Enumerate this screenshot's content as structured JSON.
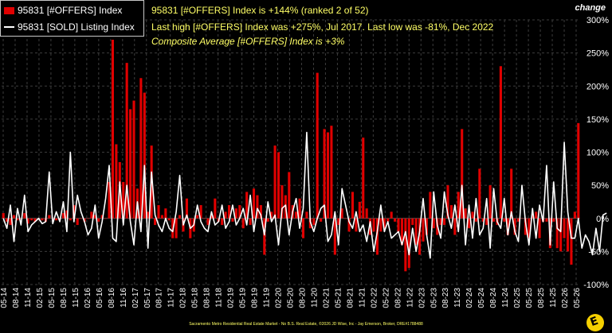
{
  "legend": {
    "bar_label": "95831 [#OFFERS] Index",
    "line_label": "95831 [SOLD] Listing Index"
  },
  "info": {
    "line1": "95831 [#OFFERS] Index is +144% (ranked 2 of 52)",
    "line2": "Last high [#OFFERS] Index was +275%, Jul 2017. Last low was -81%, Dec 2022",
    "line3": "Composite Average [#OFFERS] Index is +3%"
  },
  "footer": "Sacramento Metro Residential Real Estate Market - No B.S. Real Estate, ©2026 JD Wise, Inc - Jay Emerson, Broker, DRE#1788488",
  "colors": {
    "bars": "#e00000",
    "line": "#ffffff",
    "grid": "#3c3c3c",
    "zero_line": "#5a5a5a",
    "info_text": "#ffff66"
  },
  "chart_data": {
    "type": "bar",
    "ylabel": "change",
    "ylim": [
      -100,
      300
    ],
    "yticks": [
      -100,
      -50,
      0,
      50,
      100,
      150,
      200,
      250,
      300
    ],
    "ytick_labels": [
      "-100%",
      "-50%",
      "0%",
      "50%",
      "100%",
      "150%",
      "200%",
      "250%",
      "300%"
    ],
    "x_tick_labels": [
      "05-14",
      "08-14",
      "11-14",
      "02-15",
      "05-15",
      "08-15",
      "11-15",
      "02-16",
      "05-16",
      "08-16",
      "11-16",
      "02-17",
      "05-17",
      "08-17",
      "11-17",
      "02-18",
      "05-18",
      "08-18",
      "11-18",
      "02-19",
      "05-19",
      "08-19",
      "11-19",
      "02-20",
      "05-20",
      "08-20",
      "11-20",
      "02-21",
      "05-21",
      "08-21",
      "11-21",
      "02-22",
      "05-22",
      "08-22",
      "11-22",
      "02-23",
      "05-23",
      "08-23",
      "11-23",
      "02-24",
      "05-24",
      "08-24",
      "11-24",
      "02-25",
      "05-25",
      "08-25",
      "11-25",
      "02-26",
      "05-26"
    ],
    "series": [
      {
        "name": "95831 [#OFFERS] Index",
        "type": "bar",
        "values": [
          8,
          -5,
          -10,
          5,
          -3,
          0,
          8,
          -8,
          -3,
          -5,
          0,
          -3,
          -5,
          5,
          0,
          -3,
          0,
          8,
          12,
          -3,
          20,
          -10,
          0,
          -5,
          0,
          10,
          5,
          -5,
          5,
          0,
          55,
          270,
          112,
          85,
          55,
          235,
          165,
          178,
          45,
          212,
          190,
          10,
          110,
          -10,
          20,
          5,
          15,
          -3,
          -30,
          -30,
          5,
          -20,
          30,
          -30,
          -20,
          5,
          20,
          0,
          -10,
          5,
          30,
          -5,
          -10,
          10,
          20,
          -5,
          15,
          20,
          -15,
          40,
          -10,
          45,
          35,
          20,
          -55,
          -5,
          10,
          110,
          100,
          50,
          35,
          70,
          20,
          10,
          30,
          -30,
          10,
          -15,
          -10,
          220,
          -5,
          135,
          130,
          140,
          -55,
          -10,
          15,
          0,
          -20,
          40,
          -20,
          25,
          122,
          15,
          -25,
          -20,
          -55,
          -20,
          -15,
          -5,
          10,
          -5,
          -20,
          -40,
          -80,
          -75,
          -10,
          -40,
          -55,
          -35,
          -25,
          40,
          -15,
          -25,
          -10,
          -10,
          50,
          20,
          -25,
          40,
          135,
          15,
          -15,
          10,
          -5,
          75,
          -5,
          -10,
          50,
          -5,
          -10,
          230,
          -5,
          -25,
          75,
          -25,
          -5,
          0,
          -25,
          -30,
          5,
          10,
          -30,
          -5,
          -5,
          -45,
          -5,
          -45,
          -50,
          -30,
          -50,
          -70,
          10,
          144
        ]
      },
      {
        "name": "95831 [SOLD] Listing Index",
        "type": "line",
        "values": [
          0,
          -15,
          20,
          -35,
          15,
          -10,
          35,
          -20,
          -10,
          -5,
          0,
          -8,
          -5,
          70,
          -8,
          10,
          -5,
          25,
          -20,
          100,
          -5,
          35,
          10,
          -5,
          -25,
          -15,
          20,
          -30,
          -5,
          30,
          80,
          -30,
          -35,
          55,
          -10,
          50,
          -5,
          -40,
          25,
          -20,
          80,
          -45,
          70,
          5,
          -10,
          -20,
          0,
          -15,
          -20,
          10,
          65,
          -10,
          5,
          -15,
          -10,
          20,
          -5,
          -15,
          -20,
          10,
          -10,
          -5,
          20,
          -15,
          -5,
          20,
          -10,
          0,
          15,
          -10,
          35,
          -20,
          15,
          5,
          -25,
          25,
          -5,
          5,
          -40,
          15,
          20,
          -25,
          10,
          30,
          -15,
          15,
          130,
          -5,
          -20,
          0,
          15,
          20,
          -35,
          -25,
          10,
          -40,
          45,
          20,
          -5,
          -15,
          10,
          -20,
          -10,
          -35,
          -5,
          -50,
          -20,
          20,
          -20,
          -5,
          -30,
          -25,
          -20,
          -40,
          -20,
          -55,
          -15,
          -50,
          -20,
          30,
          -25,
          -60,
          40,
          -10,
          -30,
          40,
          5,
          -15,
          20,
          -20,
          50,
          -40,
          20,
          -30,
          30,
          -25,
          -15,
          30,
          -45,
          45,
          -5,
          -15,
          30,
          -25,
          10,
          -20,
          -35,
          50,
          -5,
          -40,
          15,
          -30,
          20,
          -5,
          80,
          -40,
          55,
          -15,
          -20,
          115,
          10,
          -30,
          -30,
          0,
          -45,
          -25,
          -35,
          -55,
          -15,
          -50,
          5,
          8
        ]
      }
    ]
  }
}
